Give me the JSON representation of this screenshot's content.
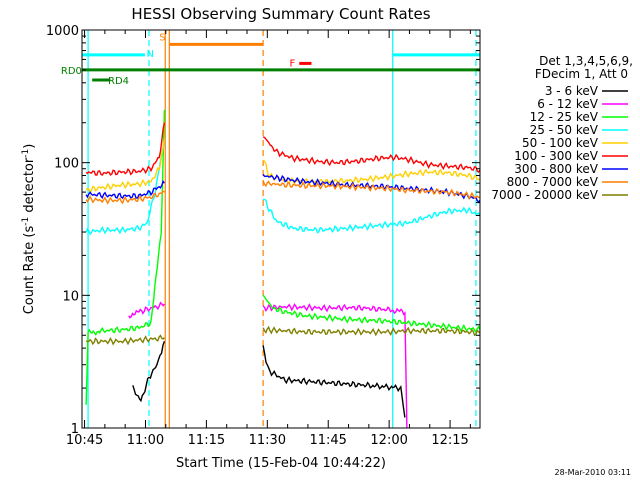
{
  "chart_data": {
    "type": "line",
    "title": "HESSI Observing Summary Count Rates",
    "xlabel": "Start Time (15-Feb-04 10:44:22)",
    "ylabel_parts": [
      "Count Rate (s",
      "-1",
      " detector",
      "-1",
      ")"
    ],
    "ylabel": "Count Rate (s-1 detector-1)",
    "y_scale": "log",
    "ylim": [
      1,
      1000
    ],
    "xlim_minutes": [
      0,
      98
    ],
    "x_ticks": [
      {
        "t": 0.63,
        "label": "10:45"
      },
      {
        "t": 15.63,
        "label": "11:00"
      },
      {
        "t": 30.63,
        "label": "11:15"
      },
      {
        "t": 45.63,
        "label": "11:30"
      },
      {
        "t": 60.63,
        "label": "11:45"
      },
      {
        "t": 75.63,
        "label": "12:00"
      },
      {
        "t": 90.63,
        "label": "12:15"
      }
    ],
    "y_ticks": [
      {
        "v": 1,
        "label": "1"
      },
      {
        "v": 10,
        "label": "10"
      },
      {
        "v": 100,
        "label": "100"
      },
      {
        "v": 1000,
        "label": "1000"
      }
    ],
    "legend_header": [
      "Det 1,3,4,5,6,9,",
      "FDecim 1, Att 0"
    ],
    "legend_placement": "right",
    "series": [
      {
        "name": "3 - 6 keV",
        "color": "#000000",
        "segments": [
          [
            [
              12.5,
              2.0
            ],
            [
              14.5,
              1.6
            ],
            [
              16.5,
              2.4
            ],
            [
              18.5,
              3.0
            ],
            [
              20.3,
              4.5
            ]
          ],
          [
            [
              44.6,
              4.0
            ],
            [
              46,
              2.7
            ],
            [
              50,
              2.3
            ],
            [
              60,
              2.2
            ],
            [
              70,
              2.1
            ],
            [
              78.5,
              2.0
            ],
            [
              79.5,
              1.2
            ]
          ]
        ]
      },
      {
        "name": "6 - 12 keV",
        "color": "#ff00ff",
        "segments": [
          [
            [
              11.5,
              7.0
            ],
            [
              14,
              7.5
            ],
            [
              17,
              8.0
            ],
            [
              19,
              8.3
            ],
            [
              20.3,
              8.6
            ]
          ],
          [
            [
              44.6,
              8.0
            ],
            [
              50,
              8.2
            ],
            [
              55,
              8.1
            ],
            [
              60,
              8.0
            ],
            [
              65,
              8.1
            ],
            [
              70,
              8.0
            ],
            [
              75,
              7.8
            ],
            [
              79.5,
              7.5
            ],
            [
              80,
              1.0
            ]
          ]
        ]
      },
      {
        "name": "12 - 25 keV",
        "color": "#00ff00",
        "segments": [
          [
            [
              1,
              1.5
            ],
            [
              1.5,
              5.2
            ],
            [
              5,
              5.4
            ],
            [
              10,
              5.5
            ],
            [
              14,
              5.7
            ],
            [
              17,
              6.2
            ],
            [
              19.5,
              30
            ],
            [
              20.3,
              250
            ]
          ],
          [
            [
              44.6,
              10.0
            ],
            [
              47,
              8.0
            ],
            [
              50,
              7.5
            ],
            [
              55,
              7.0
            ],
            [
              60,
              6.8
            ],
            [
              65,
              6.6
            ],
            [
              70,
              6.5
            ],
            [
              75,
              6.4
            ],
            [
              80,
              6.2
            ],
            [
              85,
              6.0
            ],
            [
              90,
              5.8
            ],
            [
              95,
              5.6
            ],
            [
              98,
              5.5
            ]
          ]
        ]
      },
      {
        "name": "25 - 50 keV",
        "color": "#00ffff",
        "segments": [
          [
            [
              1,
              30
            ],
            [
              5,
              31
            ],
            [
              10,
              31
            ],
            [
              14,
              32
            ],
            [
              16,
              35
            ],
            [
              18,
              60
            ],
            [
              20.3,
              150
            ]
          ],
          [
            [
              44.6,
              55
            ],
            [
              46,
              45
            ],
            [
              48,
              36
            ],
            [
              52,
              32
            ],
            [
              58,
              31
            ],
            [
              65,
              32
            ],
            [
              70,
              33
            ],
            [
              75,
              34
            ],
            [
              80,
              35
            ],
            [
              85,
              39
            ],
            [
              90,
              43
            ],
            [
              95,
              44
            ],
            [
              98,
              40
            ]
          ]
        ]
      },
      {
        "name": "50 - 100 keV",
        "color": "#ffd000",
        "segments": [
          [
            [
              1,
              62
            ],
            [
              5,
              65
            ],
            [
              10,
              68
            ],
            [
              14,
              69
            ],
            [
              17,
              72
            ],
            [
              19,
              90
            ],
            [
              20.3,
              150
            ]
          ],
          [
            [
              44.6,
              110
            ],
            [
              46,
              80
            ],
            [
              50,
              73
            ],
            [
              55,
              72
            ],
            [
              60,
              72
            ],
            [
              65,
              73
            ],
            [
              70,
              75
            ],
            [
              75,
              78
            ],
            [
              80,
              82
            ],
            [
              85,
              85
            ],
            [
              90,
              84
            ],
            [
              95,
              80
            ],
            [
              98,
              75
            ]
          ]
        ]
      },
      {
        "name": "100 - 300 keV",
        "color": "#ff0000",
        "segments": [
          [
            [
              1,
              85
            ],
            [
              5,
              83
            ],
            [
              10,
              85
            ],
            [
              14,
              86
            ],
            [
              17,
              90
            ],
            [
              19,
              110
            ],
            [
              20.3,
              200
            ]
          ],
          [
            [
              44.6,
              160
            ],
            [
              46,
              140
            ],
            [
              48,
              120
            ],
            [
              52,
              108
            ],
            [
              58,
              102
            ],
            [
              63,
              100
            ],
            [
              68,
              103
            ],
            [
              73,
              108
            ],
            [
              77,
              110
            ],
            [
              80,
              106
            ],
            [
              85,
              97
            ],
            [
              90,
              94
            ],
            [
              95,
              92
            ],
            [
              98,
              88
            ]
          ]
        ]
      },
      {
        "name": "300 - 800 keV",
        "color": "#0000ff",
        "segments": [
          [
            [
              1,
              58
            ],
            [
              5,
              57
            ],
            [
              10,
              56
            ],
            [
              14,
              56
            ],
            [
              17,
              60
            ],
            [
              20.3,
              70
            ]
          ],
          [
            [
              44.6,
              80
            ],
            [
              50,
              75
            ],
            [
              55,
              72
            ],
            [
              60,
              70
            ],
            [
              65,
              68
            ],
            [
              70,
              67
            ],
            [
              75,
              66
            ],
            [
              80,
              64
            ],
            [
              85,
              62
            ],
            [
              90,
              60
            ],
            [
              95,
              56
            ],
            [
              98,
              52
            ]
          ]
        ]
      },
      {
        "name": "800 - 7000 keV",
        "color": "#ff7f00",
        "segments": [
          [
            [
              1,
              53
            ],
            [
              5,
              52
            ],
            [
              10,
              52
            ],
            [
              14,
              53
            ],
            [
              17,
              55
            ],
            [
              20.3,
              60
            ]
          ],
          [
            [
              44.6,
              70
            ],
            [
              50,
              68
            ],
            [
              55,
              67
            ],
            [
              60,
              67
            ],
            [
              65,
              66
            ],
            [
              70,
              65
            ],
            [
              75,
              64
            ],
            [
              80,
              62
            ],
            [
              85,
              61
            ],
            [
              90,
              60
            ],
            [
              95,
              57
            ],
            [
              98,
              55
            ]
          ]
        ]
      },
      {
        "name": "7000 - 20000 keV",
        "color": "#7f7f00",
        "segments": [
          [
            [
              1,
              4.5
            ],
            [
              5,
              4.5
            ],
            [
              10,
              4.5
            ],
            [
              14,
              4.6
            ],
            [
              18,
              4.7
            ],
            [
              20.3,
              4.8
            ]
          ],
          [
            [
              44.6,
              5.5
            ],
            [
              50,
              5.4
            ],
            [
              55,
              5.3
            ],
            [
              60,
              5.3
            ],
            [
              65,
              5.3
            ],
            [
              70,
              5.3
            ],
            [
              75,
              5.3
            ],
            [
              80,
              5.4
            ],
            [
              85,
              5.4
            ],
            [
              90,
              5.4
            ],
            [
              95,
              5.3
            ],
            [
              98,
              5.2
            ]
          ]
        ]
      }
    ],
    "state_bars": [
      {
        "label": "N",
        "color": "#00ffff",
        "y": 650,
        "segments": [
          [
            0,
            15.5
          ],
          [
            76.5,
            98
          ]
        ],
        "label_t": 16.8,
        "label_y": 670
      },
      {
        "label": "S",
        "color": "#ff7f00",
        "y": 780,
        "segments": [
          [
            21.5,
            44.6
          ]
        ],
        "label_t": 19.8,
        "label_y": 890
      },
      {
        "label": "F",
        "color": "#ff0000",
        "y": 560,
        "segments": [
          [
            53.5,
            56.5
          ]
        ],
        "label_t": 51.8,
        "label_y": 570
      },
      {
        "label": "RD0",
        "color": "#007f00",
        "y": 500,
        "segments": [
          [
            0,
            98
          ]
        ],
        "label_t": -5.2,
        "label_y": 500
      },
      {
        "label": "RD4",
        "color": "#007f00",
        "y": 420,
        "segments": [
          [
            2.5,
            7.0
          ]
        ],
        "label_t": 9.0,
        "label_y": 420
      }
    ],
    "vlines": [
      {
        "t": 1.5,
        "color": "#00ffff",
        "style": "solid"
      },
      {
        "t": 16.5,
        "color": "#00ffff",
        "style": "dashed"
      },
      {
        "t": 20.5,
        "color": "#ff7f00",
        "style": "solid"
      },
      {
        "t": 21.5,
        "color": "#ff7f00",
        "style": "solid"
      },
      {
        "t": 44.6,
        "color": "#ff7f00",
        "style": "dashed"
      },
      {
        "t": 76.5,
        "color": "#00ffff",
        "style": "solid"
      },
      {
        "t": 97.0,
        "color": "#00ffff",
        "style": "dashed"
      }
    ],
    "grid": false,
    "footer_date": "28-Mar-2010 03:11"
  }
}
